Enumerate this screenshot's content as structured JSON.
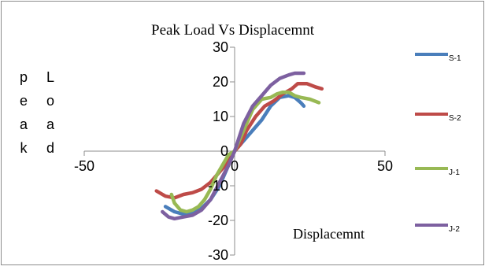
{
  "chart_data": {
    "type": "line",
    "title": "Peak Load Vs Displacemnt",
    "xlabel": "Displacemnt",
    "ylabel_columns": [
      [
        "p",
        "e",
        "a",
        "k"
      ],
      [
        "L",
        "o",
        "a",
        "d"
      ]
    ],
    "xlim": [
      -50,
      50
    ],
    "ylim": [
      -30,
      30
    ],
    "x_ticks": [
      "-50",
      "0",
      "50"
    ],
    "y_ticks": [
      "30",
      "20",
      "10",
      "0",
      "-10",
      "-20",
      "-30"
    ],
    "grid": false,
    "legend_position": "right",
    "series": [
      {
        "name": "S-1",
        "color": "#4a7ebb",
        "x": [
          -23,
          -20,
          -17,
          -14,
          -11,
          -8,
          -5,
          -2,
          0,
          3,
          6,
          9,
          12,
          15,
          18,
          20,
          22,
          23
        ],
        "y": [
          -16,
          -17.5,
          -18.2,
          -18,
          -16.5,
          -14,
          -10,
          -4,
          0,
          3,
          6,
          9,
          13,
          15.5,
          16,
          15.5,
          14,
          13
        ]
      },
      {
        "name": "S-2",
        "color": "#be4b48",
        "x": [
          -26,
          -23,
          -20,
          -17,
          -14,
          -11,
          -8,
          -5,
          -3,
          -1,
          0,
          2,
          4,
          7,
          10,
          13,
          16,
          19,
          21,
          24,
          27,
          29
        ],
        "y": [
          -11.5,
          -13,
          -13.5,
          -12.5,
          -12,
          -11,
          -9,
          -6,
          -4,
          -1.5,
          0,
          2,
          6,
          10,
          13,
          14.5,
          16.5,
          18,
          19.5,
          19.5,
          18.5,
          18
        ]
      },
      {
        "name": "J-1",
        "color": "#98b954",
        "x": [
          -21,
          -20,
          -18,
          -16,
          -14,
          -12,
          -10,
          -8,
          -6,
          -4,
          -2,
          0,
          3,
          6,
          9,
          12,
          14,
          16,
          18,
          20,
          22,
          25,
          28
        ],
        "y": [
          -12.5,
          -15,
          -17,
          -17.5,
          -17,
          -16,
          -14,
          -11,
          -7,
          -4,
          -1,
          0,
          6,
          12,
          15,
          15.5,
          16.5,
          17,
          17,
          16,
          15.5,
          15,
          14
        ]
      },
      {
        "name": "J-2",
        "color": "#7d60a0",
        "x": [
          -24,
          -22,
          -20,
          -17,
          -14,
          -11,
          -8,
          -5,
          -2,
          0,
          3,
          6,
          9,
          12,
          15,
          18,
          20,
          22,
          23
        ],
        "y": [
          -17.5,
          -19,
          -19.5,
          -19,
          -18.5,
          -17,
          -14,
          -9,
          -4,
          0,
          8,
          13,
          16,
          19,
          21,
          22,
          22.5,
          22.5,
          22.5
        ]
      }
    ]
  }
}
